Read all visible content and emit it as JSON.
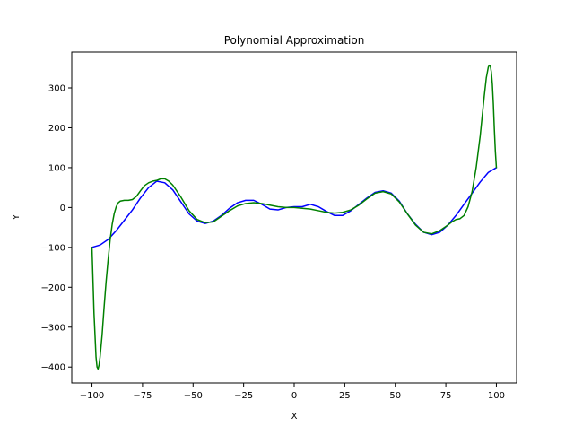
{
  "chart_data": {
    "type": "line",
    "title": "Polynomial Approximation",
    "xlabel": "X",
    "ylabel": "Y",
    "xlim": [
      -110,
      110
    ],
    "ylim": [
      -440,
      390
    ],
    "xticks": [
      -100,
      -75,
      -50,
      -25,
      0,
      25,
      50,
      75,
      100
    ],
    "yticks": [
      -400,
      -300,
      -200,
      -100,
      0,
      100,
      200,
      300
    ],
    "xtick_labels": [
      "−100",
      "−75",
      "−50",
      "−25",
      "0",
      "25",
      "50",
      "75",
      "100"
    ],
    "ytick_labels": [
      "−400",
      "−300",
      "−200",
      "−100",
      "0",
      "100",
      "200",
      "300"
    ],
    "grid": false,
    "legend": "none",
    "series": [
      {
        "color": "#0000ff",
        "x": [
          -100,
          -96,
          -92,
          -88,
          -84,
          -80,
          -76,
          -72,
          -68,
          -64,
          -60,
          -56,
          -52,
          -48,
          -44,
          -40,
          -36,
          -32,
          -28,
          -24,
          -20,
          -16,
          -12,
          -8,
          -4,
          0,
          4,
          8,
          12,
          16,
          20,
          24,
          28,
          32,
          36,
          40,
          44,
          48,
          52,
          56,
          60,
          64,
          68,
          72,
          76,
          80,
          84,
          88,
          92,
          96,
          100
        ],
        "y": [
          -100,
          -94,
          -80,
          -58,
          -32,
          -6,
          24,
          50,
          66,
          62,
          44,
          14,
          -16,
          -34,
          -40,
          -34,
          -20,
          -2,
          12,
          18,
          18,
          8,
          -4,
          -6,
          0,
          2,
          2,
          8,
          2,
          -10,
          -20,
          -20,
          -8,
          8,
          24,
          38,
          42,
          36,
          16,
          -16,
          -42,
          -62,
          -68,
          -62,
          -44,
          -20,
          8,
          36,
          64,
          88,
          100
        ]
      },
      {
        "color": "#008000",
        "x": [
          -100,
          -99,
          -98,
          -97.5,
          -97,
          -96.5,
          -96,
          -95,
          -94,
          -93,
          -92,
          -91,
          -90,
          -89,
          -88,
          -87,
          -86,
          -84,
          -82,
          -80,
          -78,
          -76,
          -74,
          -72,
          -70,
          -68,
          -66,
          -64,
          -62,
          -60,
          -56,
          -52,
          -48,
          -44,
          -40,
          -36,
          -32,
          -28,
          -24,
          -20,
          -16,
          -12,
          -8,
          -4,
          0,
          4,
          8,
          12,
          16,
          20,
          24,
          28,
          32,
          36,
          40,
          44,
          48,
          52,
          56,
          60,
          64,
          68,
          72,
          76,
          78,
          80,
          82,
          84,
          86,
          88,
          90,
          92,
          93,
          94,
          95,
          96,
          96.5,
          97,
          97.5,
          98,
          98.5,
          99,
          99.5,
          100
        ],
        "y": [
          -100,
          -265,
          -375,
          -400,
          -405,
          -395,
          -375,
          -320,
          -250,
          -185,
          -130,
          -80,
          -42,
          -15,
          2,
          12,
          16,
          18,
          18,
          20,
          28,
          42,
          55,
          62,
          66,
          68,
          72,
          72,
          66,
          56,
          26,
          -8,
          -30,
          -38,
          -36,
          -22,
          -8,
          4,
          10,
          12,
          10,
          6,
          2,
          0,
          0,
          -2,
          -4,
          -8,
          -12,
          -14,
          -12,
          -6,
          6,
          22,
          36,
          40,
          34,
          14,
          -16,
          -44,
          -62,
          -66,
          -58,
          -44,
          -36,
          -30,
          -28,
          -20,
          2,
          40,
          100,
          180,
          230,
          280,
          325,
          352,
          357,
          355,
          340,
          310,
          260,
          195,
          140,
          100
        ]
      }
    ]
  }
}
